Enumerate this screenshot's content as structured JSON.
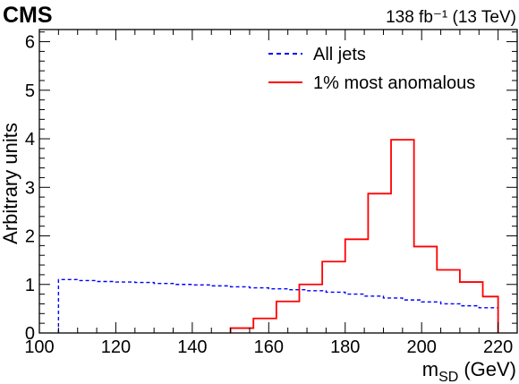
{
  "experiment_label": "CMS",
  "lumi_label": "138 fb⁻¹ (13 TeV)",
  "chart_data": {
    "type": "line",
    "step": true,
    "xlabel": "m",
    "xlabel_sub": "SD",
    "xlabel_unit": "(GeV)",
    "ylabel": "Arbitrary units",
    "xlim": [
      100,
      225
    ],
    "ylim": [
      0,
      6.25
    ],
    "x_ticks": [
      100,
      120,
      140,
      160,
      180,
      200,
      220
    ],
    "y_ticks": [
      0,
      1,
      2,
      3,
      4,
      5,
      6
    ],
    "legend_position": "top-right",
    "series": [
      {
        "name": "All jets",
        "color": "#0000ff",
        "style": "dashed",
        "bin_edges": [
          105,
          110,
          115,
          120,
          125,
          130,
          135,
          140,
          145,
          150,
          155,
          160,
          165,
          170,
          175,
          180,
          185,
          190,
          195,
          200,
          205,
          210,
          215,
          220
        ],
        "values": [
          1.1,
          1.08,
          1.06,
          1.05,
          1.04,
          1.02,
          1.0,
          0.99,
          0.97,
          0.95,
          0.93,
          0.91,
          0.89,
          0.87,
          0.84,
          0.8,
          0.76,
          0.72,
          0.68,
          0.64,
          0.6,
          0.56,
          0.52
        ]
      },
      {
        "name": "1% most anomalous",
        "color": "#ff0000",
        "style": "solid",
        "bin_edges": [
          150,
          156,
          162,
          168,
          174,
          180,
          186,
          192,
          198,
          204,
          210,
          216,
          220
        ],
        "values": [
          0.1,
          0.3,
          0.65,
          1.0,
          1.47,
          1.93,
          2.87,
          3.98,
          1.78,
          1.3,
          1.05,
          0.75
        ]
      }
    ]
  }
}
